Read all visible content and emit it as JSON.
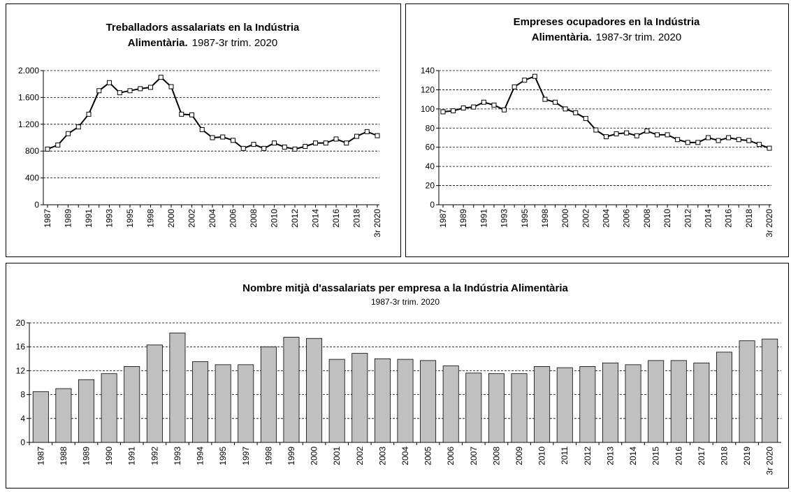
{
  "chart_data": [
    {
      "type": "line",
      "title_lines": [
        "Treballadors assalariats en la Indústria",
        "Alimentària."
      ],
      "subtitle": "1987-3r trim. 2020",
      "categories": [
        "1987",
        null,
        "1989",
        null,
        "1991",
        null,
        "1993",
        null,
        "1995",
        null,
        "1998",
        null,
        "2000",
        null,
        "2002",
        null,
        "2004",
        null,
        "2006",
        null,
        "2008",
        null,
        "2010",
        null,
        "2012",
        null,
        "2014",
        null,
        "2016",
        null,
        "2018",
        null,
        "3r 2020"
      ],
      "values": [
        830,
        890,
        1060,
        1160,
        1350,
        1700,
        1820,
        1670,
        1700,
        1730,
        1750,
        1900,
        1760,
        1350,
        1340,
        1120,
        1000,
        1010,
        960,
        840,
        900,
        840,
        920,
        860,
        830,
        870,
        920,
        920,
        980,
        920,
        1020,
        1090,
        1030
      ],
      "color": "#000000",
      "ylim": [
        0,
        2000
      ],
      "yticks": [
        0,
        400,
        800,
        {
          "value": 1200,
          "label": "1.200"
        },
        {
          "value": 1600,
          "label": "1.600"
        },
        {
          "value": 2000,
          "label": "2.000"
        }
      ],
      "grid": true
    },
    {
      "type": "line",
      "title_lines": [
        "Empreses ocupadores en la Indústria",
        "Alimentària."
      ],
      "subtitle": "1987-3r trim. 2020",
      "categories": [
        "1987",
        null,
        "1989",
        null,
        "1991",
        null,
        "1993",
        null,
        "1995",
        null,
        "1998",
        null,
        "2000",
        null,
        "2002",
        null,
        "2004",
        null,
        "2006",
        null,
        "2008",
        null,
        "2010",
        null,
        "2012",
        null,
        "2014",
        null,
        "2016",
        null,
        "2018",
        null,
        "3r 2020"
      ],
      "values": [
        97,
        98,
        101,
        102,
        107,
        104,
        99,
        123,
        130,
        134,
        110,
        107,
        100,
        96,
        90,
        78,
        71,
        74,
        75,
        72,
        77,
        73,
        73,
        68,
        65,
        65,
        70,
        67,
        70,
        68,
        67,
        63,
        59
      ],
      "color": "#000000",
      "ylim": [
        0,
        140
      ],
      "yticks": [
        0,
        20,
        40,
        60,
        80,
        100,
        120,
        140
      ],
      "grid": true
    },
    {
      "type": "bar",
      "title_lines": [
        "Nombre mitjà d'assalariats per empresa a la Indústria Alimentària"
      ],
      "subtitle": "1987-3r trim. 2020",
      "categories": [
        "1987",
        "1988",
        "1989",
        "1990",
        "1991",
        "1992",
        "1993",
        "1994",
        "1995",
        "1997",
        "1998",
        "1999",
        "2000",
        "2001",
        "2002",
        "2003",
        "2004",
        "2005",
        "2006",
        "2007",
        "2008",
        "2009",
        "2010",
        "2011",
        "2012",
        "2013",
        "2014",
        "2015",
        "2016",
        "2017",
        "2018",
        "2019",
        "3r 2020"
      ],
      "values": [
        8.5,
        9.0,
        10.5,
        11.5,
        12.7,
        16.3,
        18.3,
        13.5,
        13.0,
        13.0,
        16.0,
        17.6,
        17.4,
        13.9,
        14.9,
        14.0,
        13.9,
        13.7,
        12.8,
        11.6,
        11.5,
        11.5,
        12.7,
        12.5,
        12.7,
        13.3,
        13.0,
        13.7,
        13.7,
        13.3,
        15.1,
        17.0,
        17.3
      ],
      "color": "#c0c0c0",
      "ylim": [
        0,
        20
      ],
      "yticks": [
        0,
        4,
        8,
        12,
        16,
        20
      ],
      "grid": true
    }
  ]
}
